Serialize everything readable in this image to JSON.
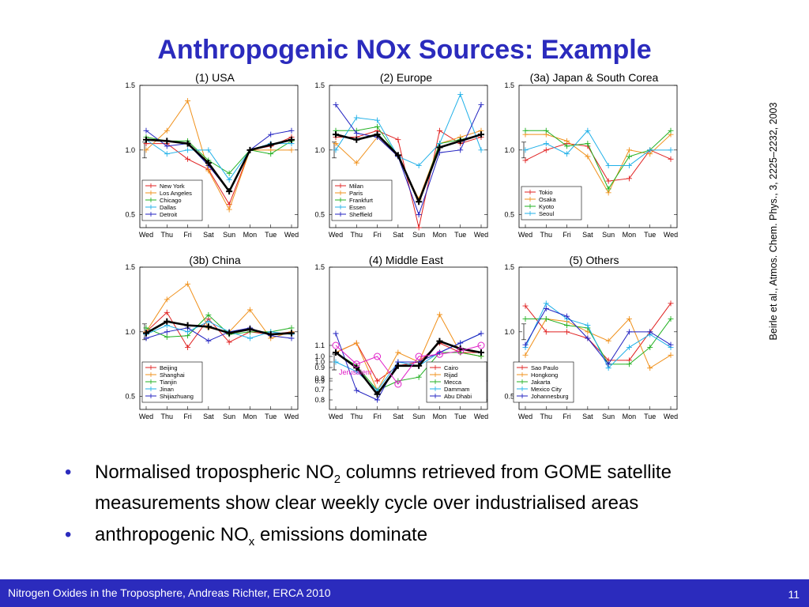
{
  "title": "Anthropogenic NOx Sources: Example",
  "citation": "Beirle et al., Atmos. Chem. Phys., 3, 2225–2232, 2003",
  "bullets": [
    {
      "pre": "Normalised tropospheric NO",
      "sub": "2",
      "post": " columns retrieved from GOME satellite measurements show clear weekly cycle over industrialised areas"
    },
    {
      "pre": "anthropogenic NO",
      "sub": "x",
      "post": " emissions dominate"
    }
  ],
  "footer": {
    "text": "Nitrogen Oxides in the Troposphere, Andreas Richter, ERCA 2010",
    "page": "11"
  },
  "colors": {
    "accent": "#2b2bbd",
    "mean": "#000000"
  },
  "chart_data": [
    {
      "type": "line",
      "title": "(1) USA",
      "categories": [
        "Wed",
        "Thu",
        "Fri",
        "Sat",
        "Sun",
        "Mon",
        "Tue",
        "Wed"
      ],
      "ylim": [
        0.4,
        1.5
      ],
      "yticks": [
        "0.5",
        "1.0",
        "1.5"
      ],
      "series": [
        {
          "name": "New York",
          "color": "#e02020",
          "values": [
            1.05,
            1.05,
            0.93,
            0.85,
            0.58,
            1.0,
            1.03,
            1.1
          ]
        },
        {
          "name": "Los Angeles",
          "color": "#f0901a",
          "values": [
            1.0,
            1.15,
            1.38,
            0.84,
            0.54,
            1.0,
            1.0,
            1.0
          ]
        },
        {
          "name": "Chicago",
          "color": "#20b020",
          "values": [
            1.1,
            1.07,
            1.07,
            0.92,
            0.82,
            1.0,
            0.97,
            1.07
          ]
        },
        {
          "name": "Dallas",
          "color": "#20b0e8",
          "values": [
            1.08,
            0.97,
            1.0,
            1.0,
            0.77,
            1.0,
            1.05,
            1.05
          ]
        },
        {
          "name": "Detroit",
          "color": "#2020c0",
          "values": [
            1.15,
            1.03,
            1.05,
            0.88,
            0.68,
            1.0,
            1.12,
            1.15
          ]
        },
        {
          "name": "",
          "color": "#000000",
          "values": [
            1.08,
            1.07,
            1.05,
            0.9,
            0.68,
            1.0,
            1.04,
            1.08
          ]
        }
      ]
    },
    {
      "type": "line",
      "title": "(2) Europe",
      "categories": [
        "Wed",
        "Thu",
        "Fri",
        "Sat",
        "Sun",
        "Mon",
        "Tue",
        "Wed"
      ],
      "ylim": [
        0.4,
        1.5
      ],
      "yticks": [
        "0.5",
        "1.0",
        "1.5"
      ],
      "series": [
        {
          "name": "Milan",
          "color": "#e02020",
          "values": [
            1.1,
            1.1,
            1.15,
            1.08,
            0.4,
            1.15,
            1.05,
            1.1
          ]
        },
        {
          "name": "Paris",
          "color": "#f0901a",
          "values": [
            1.05,
            0.9,
            1.1,
            0.95,
            0.62,
            1.05,
            1.1,
            1.15
          ]
        },
        {
          "name": "Frankfurt",
          "color": "#20b020",
          "values": [
            1.15,
            1.15,
            1.18,
            0.95,
            0.6,
            1.05,
            1.08,
            1.12
          ]
        },
        {
          "name": "Essen",
          "color": "#20b0e8",
          "values": [
            1.0,
            1.25,
            1.23,
            0.95,
            0.88,
            1.05,
            1.43,
            1.0
          ]
        },
        {
          "name": "Sheffield",
          "color": "#2020c0",
          "values": [
            1.35,
            1.13,
            1.1,
            0.95,
            0.5,
            0.98,
            1.0,
            1.35
          ]
        },
        {
          "name": "",
          "color": "#000000",
          "values": [
            1.12,
            1.08,
            1.12,
            0.96,
            0.6,
            1.02,
            1.07,
            1.12
          ]
        }
      ]
    },
    {
      "type": "line",
      "title": "(3a) Japan & South Corea",
      "categories": [
        "Wed",
        "Thu",
        "Fri",
        "Sat",
        "Sun",
        "Mon",
        "Tue",
        "Wed"
      ],
      "ylim": [
        0.4,
        1.5
      ],
      "yticks": [
        "0.5",
        "1.0",
        "1.5"
      ],
      "series": [
        {
          "name": "Tokio",
          "color": "#e02020",
          "values": [
            0.92,
            1.0,
            1.05,
            1.03,
            0.76,
            0.78,
            1.0,
            0.93
          ]
        },
        {
          "name": "Osaka",
          "color": "#f0901a",
          "values": [
            1.12,
            1.12,
            1.07,
            0.95,
            0.67,
            1.0,
            0.97,
            1.12
          ]
        },
        {
          "name": "Kyoto",
          "color": "#20b020",
          "values": [
            1.15,
            1.15,
            1.03,
            1.05,
            0.7,
            0.95,
            1.0,
            1.15
          ]
        },
        {
          "name": "Seoul",
          "color": "#20b0e8",
          "values": [
            1.0,
            1.05,
            0.97,
            1.15,
            0.88,
            0.88,
            1.0,
            1.0
          ]
        }
      ]
    },
    {
      "type": "line",
      "title": "(3b) China",
      "categories": [
        "Wed",
        "Thu",
        "Fri",
        "Sat",
        "Sun",
        "Mon",
        "Tue",
        "Wed"
      ],
      "ylim": [
        0.4,
        1.5
      ],
      "yticks": [
        "0.5",
        "1.0",
        "1.5"
      ],
      "series": [
        {
          "name": "Beijing",
          "color": "#e02020",
          "values": [
            1.0,
            1.15,
            0.88,
            1.1,
            0.92,
            1.0,
            0.98,
            1.0
          ]
        },
        {
          "name": "Shanghai",
          "color": "#f0901a",
          "values": [
            1.0,
            1.25,
            1.37,
            1.03,
            1.0,
            1.17,
            0.95,
            1.0
          ]
        },
        {
          "name": "Tianjin",
          "color": "#20b020",
          "values": [
            1.03,
            0.96,
            0.97,
            1.13,
            0.98,
            1.0,
            1.0,
            1.03
          ]
        },
        {
          "name": "Jinan",
          "color": "#20b0e8",
          "values": [
            0.98,
            1.05,
            1.0,
            1.08,
            1.0,
            0.95,
            1.0,
            0.98
          ]
        },
        {
          "name": "Shijiazhuang",
          "color": "#2020c0",
          "values": [
            0.95,
            1.0,
            1.03,
            0.93,
            1.0,
            1.03,
            0.97,
            0.95
          ]
        },
        {
          "name": "",
          "color": "#000000",
          "values": [
            0.99,
            1.08,
            1.05,
            1.04,
            0.99,
            1.02,
            0.98,
            0.99
          ]
        }
      ]
    },
    {
      "type": "line",
      "title": "(4) Middle East",
      "categories": [
        "Wed",
        "Thu",
        "Fri",
        "Sat",
        "Sun",
        "Mon",
        "Tue",
        "Wed"
      ],
      "ylim": [
        0.75,
        1.5
      ],
      "yticks": [
        "0.8",
        "0.9",
        "1.0",
        "1.5"
      ],
      "series": [
        {
          "name": "Cairo",
          "color": "#e02020",
          "values": [
            1.05,
            1.1,
            0.9,
            0.98,
            1.0,
            1.1,
            1.05,
            1.05
          ]
        },
        {
          "name": "Rijad",
          "color": "#f0901a",
          "values": [
            1.05,
            1.1,
            0.85,
            1.05,
            1.0,
            1.25,
            1.05,
            1.03
          ]
        },
        {
          "name": "Mecca",
          "color": "#20b020",
          "values": [
            1.05,
            0.98,
            0.85,
            0.9,
            0.92,
            1.05,
            1.05,
            1.03
          ]
        },
        {
          "name": "Dammam",
          "color": "#20b0e8",
          "values": [
            1.0,
            0.95,
            0.85,
            1.0,
            0.98,
            1.05,
            1.1,
            1.15
          ]
        },
        {
          "name": "Abu Dhabi",
          "color": "#2020c0",
          "values": [
            1.15,
            0.85,
            0.8,
            1.0,
            1.0,
            1.05,
            1.1,
            1.15
          ]
        },
        {
          "name": "",
          "color": "#000000",
          "values": [
            1.05,
            0.97,
            0.83,
            0.98,
            0.98,
            1.11,
            1.07,
            1.05
          ]
        }
      ],
      "inset": {
        "name": "Jerusalem",
        "color": "#e020c8",
        "ylim": [
          0.65,
          1.15
        ],
        "yticks": [
          "0.7",
          "0.8",
          "0.9",
          "1.0",
          "1.1"
        ],
        "values": [
          1.1,
          0.93,
          1.0,
          0.75,
          1.0,
          1.02,
          1.05,
          1.1
        ]
      }
    },
    {
      "type": "line",
      "title": "(5) Others",
      "categories": [
        "Wed",
        "Thu",
        "Fri",
        "Sat",
        "Sun",
        "Mon",
        "Tue",
        "Wed"
      ],
      "ylim": [
        0.4,
        1.5
      ],
      "yticks": [
        "0.5",
        "1.0",
        "1.5"
      ],
      "series": [
        {
          "name": "Sao Paulo",
          "color": "#e02020",
          "values": [
            1.2,
            1.0,
            1.0,
            0.95,
            0.78,
            0.78,
            1.0,
            1.22
          ]
        },
        {
          "name": "Hongkong",
          "color": "#f0901a",
          "values": [
            0.82,
            1.1,
            1.08,
            1.0,
            0.93,
            1.1,
            0.72,
            0.82
          ]
        },
        {
          "name": "Jakarta",
          "color": "#20b020",
          "values": [
            1.1,
            1.1,
            1.05,
            1.03,
            0.75,
            0.75,
            0.88,
            1.1
          ]
        },
        {
          "name": "Mexico City",
          "color": "#20b0e8",
          "values": [
            0.88,
            1.22,
            1.1,
            1.05,
            0.72,
            0.88,
            0.98,
            0.88
          ]
        },
        {
          "name": "Johannesburg",
          "color": "#2020c0",
          "values": [
            0.9,
            1.18,
            1.12,
            0.95,
            0.75,
            1.0,
            1.0,
            0.9
          ]
        }
      ]
    }
  ]
}
